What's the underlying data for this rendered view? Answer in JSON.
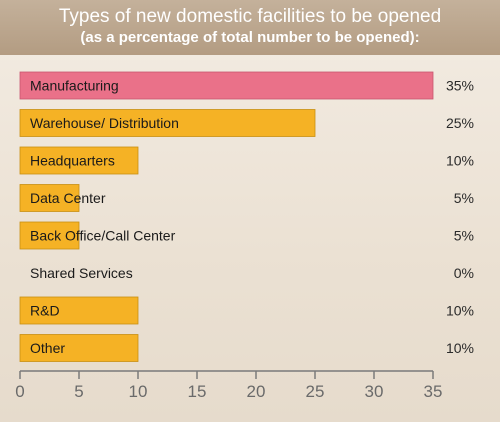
{
  "title": {
    "line1": "Types of new domestic facilities to be opened",
    "line2": "(as a percentage of total number to be opened):"
  },
  "colors": {
    "highlight": "#ea7189",
    "bar": "#f5b225",
    "bar_stroke": "#c98f12",
    "axis": "#7a7a7a"
  },
  "chart_data": {
    "type": "bar",
    "orientation": "horizontal",
    "categories": [
      "Manufacturing",
      "Warehouse/ Distribution",
      "Headquarters",
      "Data Center",
      "Back Office/Call Center",
      "Shared Services",
      "R&D",
      "Other"
    ],
    "values": [
      35,
      25,
      10,
      5,
      5,
      0,
      10,
      10
    ],
    "value_labels": [
      "35%",
      "25%",
      "10%",
      "5%",
      "5%",
      "0%",
      "10%",
      "10%"
    ],
    "highlight_index": 0,
    "xlim": [
      0,
      35
    ],
    "xticks": [
      0,
      5,
      10,
      15,
      20,
      25,
      30,
      35
    ],
    "xlabel": "",
    "ylabel": "",
    "grid": false
  }
}
